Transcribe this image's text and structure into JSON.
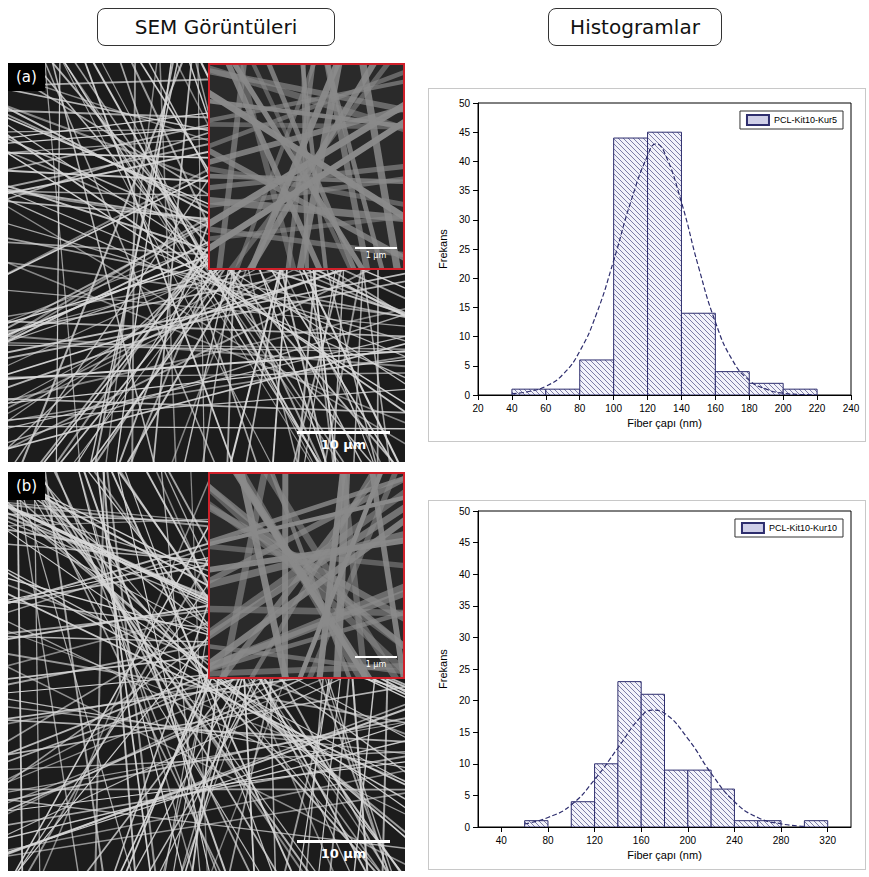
{
  "headers": [
    "SEM Görüntüleri",
    "Histogramlar"
  ],
  "panels": [
    {
      "label": "(a)",
      "scale_bar": "10 µm",
      "inset_scale_bar": "1 µm"
    },
    {
      "label": "(b)",
      "scale_bar": "10 µm",
      "inset_scale_bar": "1 µm"
    }
  ],
  "chart_data": [
    {
      "type": "histogram",
      "xlabel": "Fiber çapı (nm)",
      "ylabel": "Frekans",
      "bins": [
        40,
        60,
        80,
        100,
        120,
        140,
        160,
        180,
        200,
        220
      ],
      "series": [
        {
          "name": "PCL-Kit10-Kur5",
          "color": "#2e2e6e",
          "values": [
            1,
            1,
            6,
            44,
            45,
            14,
            4,
            2,
            1
          ]
        }
      ],
      "fit": {
        "x": [
          40,
          50,
          60,
          70,
          80,
          90,
          100,
          110,
          120,
          125,
          130,
          140,
          150,
          160,
          170,
          180,
          190,
          200,
          210,
          220
        ],
        "values": [
          0.2,
          0.6,
          1.5,
          3.5,
          7.5,
          14,
          23,
          33,
          41,
          43,
          41.5,
          33,
          22,
          12.5,
          6,
          2.5,
          1,
          0.3,
          0.1,
          0
        ],
        "line_style": "dashed"
      },
      "xlim": [
        20,
        240
      ],
      "xticks": [
        20,
        40,
        60,
        80,
        100,
        120,
        140,
        160,
        180,
        200,
        220,
        240
      ],
      "ylim": [
        0,
        50
      ],
      "yticks": [
        0,
        5,
        10,
        15,
        20,
        25,
        30,
        35,
        40,
        45,
        50
      ],
      "legend": "top-right",
      "grid": false
    },
    {
      "type": "histogram",
      "xlabel": "Fiber çapı (nm)",
      "ylabel": "Frekans",
      "bins": [
        60,
        80,
        100,
        120,
        140,
        160,
        180,
        200,
        220,
        240,
        260,
        280,
        300,
        320
      ],
      "series": [
        {
          "name": "PCL-Kit10-Kur10",
          "color": "#2e2e6e",
          "values": [
            1,
            0,
            4,
            10,
            23,
            21,
            9,
            9,
            6,
            1,
            1,
            0,
            1
          ]
        }
      ],
      "fit": {
        "x": [
          60,
          80,
          100,
          120,
          140,
          160,
          170,
          180,
          200,
          220,
          240,
          260,
          280,
          300
        ],
        "values": [
          0.5,
          1.5,
          3.5,
          7.5,
          12.5,
          17.5,
          18.5,
          18,
          14,
          8.5,
          4,
          1.5,
          0.5,
          0.1
        ],
        "line_style": "dashed"
      },
      "xlim": [
        20,
        340
      ],
      "xticks": [
        40,
        80,
        120,
        160,
        200,
        240,
        280,
        320
      ],
      "ylim": [
        0,
        50
      ],
      "yticks": [
        0,
        5,
        10,
        15,
        20,
        25,
        30,
        35,
        40,
        45,
        50
      ],
      "legend": "top-right",
      "grid": false
    }
  ]
}
